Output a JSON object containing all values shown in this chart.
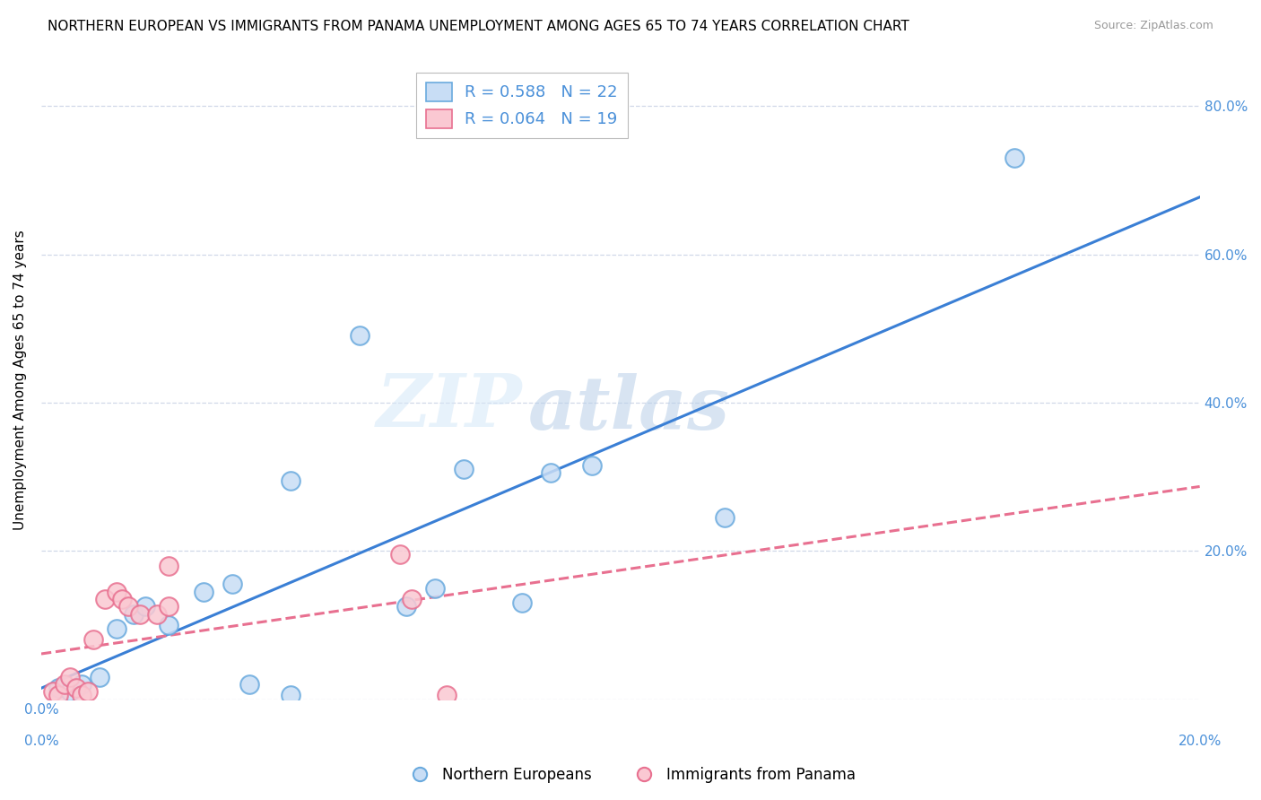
{
  "title": "NORTHERN EUROPEAN VS IMMIGRANTS FROM PANAMA UNEMPLOYMENT AMONG AGES 65 TO 74 YEARS CORRELATION CHART",
  "source": "Source: ZipAtlas.com",
  "ylabel": "Unemployment Among Ages 65 to 74 years",
  "xlim": [
    0.0,
    0.2
  ],
  "ylim": [
    0.0,
    0.86
  ],
  "xticks": [
    0.0,
    0.04,
    0.08,
    0.12,
    0.16,
    0.2
  ],
  "yticks": [
    0.0,
    0.2,
    0.4,
    0.6,
    0.8
  ],
  "watermark_zip": "ZIP",
  "watermark_atlas": "atlas",
  "blue_R": 0.588,
  "blue_N": 22,
  "pink_R": 0.064,
  "pink_N": 19,
  "blue_label": "Northern Europeans",
  "pink_label": "Immigrants from Panama",
  "blue_fill": "#c8ddf5",
  "blue_edge": "#6aaade",
  "pink_fill": "#fac8d2",
  "pink_edge": "#e87090",
  "blue_line_color": "#3a7fd5",
  "pink_line_color": "#e87090",
  "blue_scatter": [
    [
      0.003,
      0.015
    ],
    [
      0.005,
      0.01
    ],
    [
      0.007,
      0.02
    ],
    [
      0.01,
      0.03
    ],
    [
      0.013,
      0.095
    ],
    [
      0.016,
      0.115
    ],
    [
      0.018,
      0.125
    ],
    [
      0.022,
      0.1
    ],
    [
      0.028,
      0.145
    ],
    [
      0.033,
      0.155
    ],
    [
      0.036,
      0.02
    ],
    [
      0.043,
      0.295
    ],
    [
      0.043,
      0.005
    ],
    [
      0.055,
      0.49
    ],
    [
      0.063,
      0.125
    ],
    [
      0.068,
      0.15
    ],
    [
      0.073,
      0.31
    ],
    [
      0.083,
      0.13
    ],
    [
      0.088,
      0.305
    ],
    [
      0.095,
      0.315
    ],
    [
      0.118,
      0.245
    ],
    [
      0.168,
      0.73
    ]
  ],
  "pink_scatter": [
    [
      0.002,
      0.01
    ],
    [
      0.003,
      0.005
    ],
    [
      0.004,
      0.02
    ],
    [
      0.005,
      0.03
    ],
    [
      0.006,
      0.015
    ],
    [
      0.007,
      0.005
    ],
    [
      0.008,
      0.01
    ],
    [
      0.009,
      0.08
    ],
    [
      0.011,
      0.135
    ],
    [
      0.013,
      0.145
    ],
    [
      0.014,
      0.135
    ],
    [
      0.015,
      0.125
    ],
    [
      0.017,
      0.115
    ],
    [
      0.02,
      0.115
    ],
    [
      0.022,
      0.125
    ],
    [
      0.022,
      0.18
    ],
    [
      0.062,
      0.195
    ],
    [
      0.064,
      0.135
    ],
    [
      0.07,
      0.005
    ]
  ],
  "title_fontsize": 11,
  "tick_label_color": "#4a90d9",
  "legend_R_color": "#4a90d9",
  "grid_color": "#d0d8e8",
  "background_color": "#ffffff"
}
